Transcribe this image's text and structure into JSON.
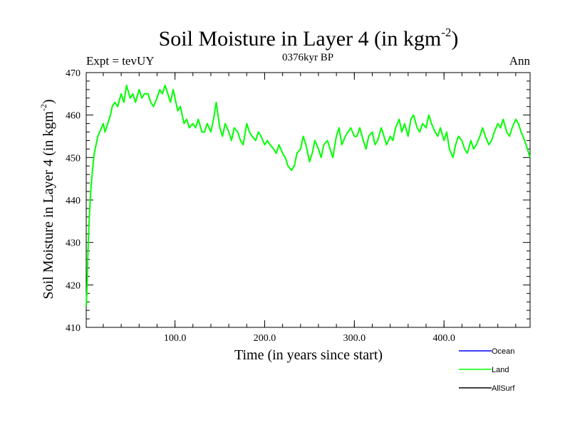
{
  "header": {
    "title": "Soil Moisture in Layer 4 (in kgm",
    "title_sup": "-2",
    "title_close": ")",
    "subtitle": "0376kyr BP",
    "left_label": "Expt = tevUY",
    "right_label": "Ann"
  },
  "axes": {
    "xlabel": "Time (in years since start)",
    "ylabel": "Soil Moisture in Layer 4 (in kgm",
    "ylabel_sup": "-2",
    "ylabel_close": ")"
  },
  "legend": {
    "placement": "bottom-right",
    "items": [
      {
        "name": "Ocean",
        "color": "#0000ff"
      },
      {
        "name": "Land",
        "color": "#00ff00"
      },
      {
        "name": "AllSurf",
        "color": "#000000"
      }
    ]
  },
  "chart_data": {
    "type": "line",
    "xlim": [
      1,
      496
    ],
    "ylim": [
      410,
      470
    ],
    "x_ticks": [
      100,
      200,
      300,
      400
    ],
    "x_tick_labels": [
      "100.0",
      "200.0",
      "300.0",
      "400.0"
    ],
    "y_ticks": [
      410,
      420,
      430,
      440,
      450,
      460,
      470
    ],
    "y_tick_labels": [
      "410",
      "420",
      "430",
      "440",
      "450",
      "460",
      "470"
    ],
    "grid": false,
    "series": [
      {
        "name": "Land",
        "color": "#00ff00",
        "x": [
          1,
          2,
          3,
          4,
          5,
          6,
          8,
          10,
          12,
          14,
          16,
          18,
          20,
          22,
          25,
          28,
          30,
          33,
          36,
          40,
          43,
          46,
          50,
          53,
          56,
          60,
          63,
          66,
          70,
          73,
          76,
          80,
          83,
          86,
          89,
          92,
          95,
          98,
          100,
          103,
          106,
          110,
          113,
          116,
          120,
          123,
          126,
          130,
          133,
          136,
          140,
          143,
          146,
          150,
          153,
          156,
          160,
          163,
          166,
          170,
          173,
          176,
          180,
          183,
          186,
          190,
          193,
          196,
          200,
          203,
          206,
          210,
          213,
          216,
          220,
          223,
          226,
          230,
          233,
          236,
          240,
          243,
          246,
          250,
          253,
          256,
          260,
          263,
          266,
          270,
          273,
          276,
          280,
          283,
          286,
          290,
          293,
          296,
          300,
          303,
          306,
          310,
          313,
          316,
          320,
          323,
          326,
          330,
          333,
          336,
          340,
          343,
          346,
          350,
          353,
          356,
          360,
          363,
          366,
          370,
          373,
          376,
          380,
          383,
          386,
          390,
          393,
          396,
          400,
          403,
          406,
          410,
          413,
          416,
          420,
          423,
          426,
          430,
          433,
          436,
          440,
          443,
          446,
          450,
          453,
          456,
          460,
          463,
          466,
          470,
          473,
          476,
          480,
          483,
          486,
          490,
          493,
          496
        ],
        "y": [
          415,
          420,
          428,
          434,
          438,
          442,
          447,
          451,
          453,
          455,
          456,
          457,
          458,
          456,
          458,
          460,
          462,
          463,
          462,
          465,
          463,
          467,
          464,
          465,
          463,
          466,
          464,
          465,
          465,
          463,
          462,
          464,
          466,
          465,
          467,
          465,
          463,
          466,
          464,
          461,
          462,
          458,
          459,
          457,
          458,
          457,
          459,
          456,
          456,
          458,
          456,
          459,
          463,
          457,
          455,
          458,
          456,
          454,
          457,
          456,
          454,
          453,
          458,
          456,
          455,
          454,
          456,
          455,
          453,
          454,
          453,
          452,
          451,
          453,
          451,
          450,
          448,
          447,
          448,
          451,
          452,
          455,
          453,
          449,
          451,
          454,
          452,
          450,
          453,
          454,
          452,
          450,
          455,
          457,
          453,
          455,
          456,
          457,
          455,
          455,
          457,
          454,
          452,
          455,
          456,
          453,
          454,
          457,
          455,
          453,
          455,
          454,
          457,
          459,
          456,
          458,
          455,
          459,
          460,
          457,
          456,
          458,
          457,
          460,
          458,
          456,
          455,
          457,
          454,
          456,
          452,
          450,
          453,
          455,
          454,
          452,
          451,
          454,
          452,
          453,
          455,
          457,
          455,
          453,
          454,
          456,
          458,
          457,
          459,
          456,
          455,
          457,
          459,
          458,
          456,
          454,
          452,
          450
        ]
      }
    ]
  }
}
